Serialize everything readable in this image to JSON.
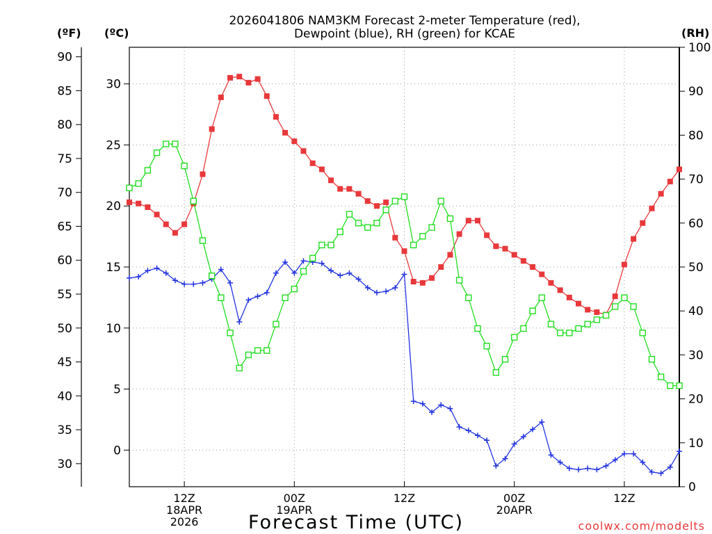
{
  "chart_data": {
    "type": "line",
    "title_line1": "2026041806 NAM3KM Forecast 2-meter Temperature (red),",
    "title_line2": "Dewpoint (blue), RH (green) for KCAE",
    "xlabel": "Forecast Time (UTC)",
    "watermark": "coolwx.com/modelts",
    "unit_labels": {
      "fahrenheit": "(ºF)",
      "celsius": "(ºC)",
      "rh": "(RH)"
    },
    "x_range_hours": [
      6,
      66
    ],
    "x_ticks": [
      {
        "hour": 12,
        "lines": [
          "12Z",
          "18APR",
          "2026"
        ]
      },
      {
        "hour": 24,
        "lines": [
          "00Z",
          "19APR"
        ]
      },
      {
        "hour": 36,
        "lines": [
          "12Z"
        ]
      },
      {
        "hour": 48,
        "lines": [
          "00Z",
          "20APR"
        ]
      },
      {
        "hour": 60,
        "lines": [
          "12Z"
        ]
      }
    ],
    "celsius_axis": {
      "range": [
        -3,
        33
      ],
      "ticks": [
        0,
        5,
        10,
        15,
        20,
        25,
        30
      ]
    },
    "fahrenheit_axis": {
      "ticks": [
        30,
        35,
        40,
        45,
        50,
        55,
        60,
        65,
        70,
        75,
        80,
        85,
        90
      ]
    },
    "rh_axis": {
      "range": [
        0,
        100
      ],
      "ticks": [
        0,
        10,
        20,
        30,
        40,
        50,
        60,
        70,
        80,
        90,
        100
      ]
    },
    "series": [
      {
        "name": "Temperature",
        "units": "C",
        "color": "#e8383b",
        "marker": "filled-square",
        "hours": [
          6,
          7,
          8,
          9,
          10,
          11,
          12,
          13,
          14,
          15,
          16,
          17,
          18,
          19,
          20,
          21,
          22,
          23,
          24,
          25,
          26,
          27,
          28,
          29,
          30,
          31,
          32,
          33,
          34,
          35,
          36,
          37,
          38,
          39,
          40,
          41,
          42,
          43,
          44,
          45,
          46,
          47,
          48,
          49,
          50,
          51,
          52,
          53,
          54,
          55,
          56,
          57,
          58,
          59,
          60,
          61,
          62,
          63,
          64,
          65,
          66
        ],
        "values": [
          20.3,
          20.2,
          19.9,
          19.3,
          18.5,
          17.8,
          18.5,
          20.2,
          22.6,
          26.3,
          28.9,
          30.5,
          30.6,
          30.1,
          30.4,
          29.0,
          27.3,
          26.0,
          25.3,
          24.5,
          23.5,
          23.0,
          22.1,
          21.4,
          21.4,
          21.0,
          20.4,
          20.0,
          20.3,
          17.4,
          16.3,
          13.8,
          13.7,
          14.1,
          15.0,
          16.0,
          17.7,
          18.8,
          18.8,
          17.6,
          16.7,
          16.5,
          16.0,
          15.5,
          15.0,
          14.4,
          13.7,
          13.1,
          12.5,
          12.0,
          11.5,
          11.3,
          11.1,
          12.6,
          15.2,
          17.3,
          18.6,
          19.8,
          21.0,
          22.0,
          23.0
        ]
      },
      {
        "name": "Dewpoint",
        "units": "C",
        "color": "#2233e0",
        "marker": "plus",
        "hours": [
          6,
          7,
          8,
          9,
          10,
          11,
          12,
          13,
          14,
          15,
          16,
          17,
          18,
          19,
          20,
          21,
          22,
          23,
          24,
          25,
          26,
          27,
          28,
          29,
          30,
          31,
          32,
          33,
          34,
          35,
          36,
          37,
          38,
          39,
          40,
          41,
          42,
          43,
          44,
          45,
          46,
          47,
          48,
          49,
          50,
          51,
          52,
          53,
          54,
          55,
          56,
          57,
          58,
          59,
          60,
          61,
          62,
          63,
          64,
          65,
          66
        ],
        "values": [
          14.1,
          14.2,
          14.7,
          14.9,
          14.5,
          13.9,
          13.6,
          13.6,
          13.7,
          14.0,
          14.8,
          13.7,
          10.5,
          12.3,
          12.6,
          12.9,
          14.5,
          15.4,
          14.5,
          15.5,
          15.4,
          15.3,
          14.7,
          14.3,
          14.5,
          14.0,
          13.3,
          12.9,
          13.0,
          13.3,
          14.4,
          4.0,
          3.8,
          3.1,
          3.7,
          3.4,
          1.9,
          1.6,
          1.2,
          0.8,
          -1.3,
          -0.7,
          0.5,
          1.1,
          1.7,
          2.3,
          -0.4,
          -1.0,
          -1.5,
          -1.6,
          -1.5,
          -1.6,
          -1.3,
          -0.8,
          -0.3,
          -0.3,
          -1.0,
          -1.8,
          -1.9,
          -1.4,
          -0.1
        ]
      },
      {
        "name": "RH",
        "units": "%",
        "color": "#22dd22",
        "marker": "open-square",
        "hours": [
          6,
          7,
          8,
          9,
          10,
          11,
          12,
          13,
          14,
          15,
          16,
          17,
          18,
          19,
          20,
          21,
          22,
          23,
          24,
          25,
          26,
          27,
          28,
          29,
          30,
          31,
          32,
          33,
          34,
          35,
          36,
          37,
          38,
          39,
          40,
          41,
          42,
          43,
          44,
          45,
          46,
          47,
          48,
          49,
          50,
          51,
          52,
          53,
          54,
          55,
          56,
          57,
          58,
          59,
          60,
          61,
          62,
          63,
          64,
          65,
          66
        ],
        "values": [
          68,
          69,
          72,
          76,
          78,
          78,
          73,
          65,
          56,
          48,
          43,
          35,
          27,
          30,
          31,
          31,
          37,
          43,
          45,
          49,
          52,
          55,
          55,
          58,
          62,
          60,
          59,
          60,
          63,
          65,
          66,
          55,
          57,
          59,
          65,
          61,
          47,
          43,
          36,
          32,
          26,
          29,
          34,
          36,
          40,
          43,
          37,
          35,
          35,
          36,
          37,
          38,
          39,
          41,
          43,
          41,
          35,
          29,
          25,
          23,
          23
        ]
      }
    ]
  }
}
